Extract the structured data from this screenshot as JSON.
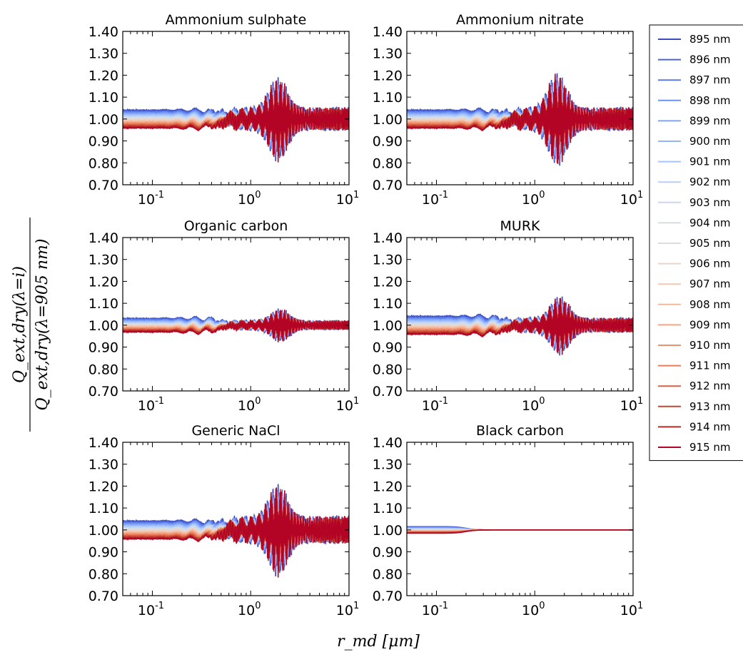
{
  "figure": {
    "ylabel_numerator": "Q_ext,dry(λ=i)",
    "ylabel_denominator": "Q_ext,dry(λ=905 nm)",
    "xlabel": "r_md [μm]"
  },
  "chart_data": {
    "type": "line",
    "layout": "3x2 grid of subplots sharing one legend at top-right",
    "xscale": "log",
    "xlim": [
      0.05,
      10
    ],
    "ylim": [
      0.7,
      1.4
    ],
    "x_tick_labels": [
      "10⁻¹",
      "10⁰",
      "10¹"
    ],
    "x_tick_values": [
      0.1,
      1,
      10
    ],
    "y_tick_labels": [
      "0.70",
      "0.80",
      "0.90",
      "1.00",
      "1.10",
      "1.20",
      "1.30",
      "1.40"
    ],
    "y_tick_values": [
      0.7,
      0.8,
      0.9,
      1.0,
      1.1,
      1.2,
      1.3,
      1.4
    ],
    "series_names": [
      "895 nm",
      "896 nm",
      "897 nm",
      "898 nm",
      "899 nm",
      "900 nm",
      "901 nm",
      "902 nm",
      "903 nm",
      "904 nm",
      "905 nm",
      "906 nm",
      "907 nm",
      "908 nm",
      "909 nm",
      "910 nm",
      "911 nm",
      "912 nm",
      "913 nm",
      "914 nm",
      "915 nm"
    ],
    "series_colors": [
      "#3b4cc0",
      "#4a63d3",
      "#5b7ae5",
      "#6d91f1",
      "#80a3fa",
      "#93b5fe",
      "#a5c3fe",
      "#b7cff9",
      "#c8d8f0",
      "#d6dce4",
      "#dddcdc",
      "#e9d5cb",
      "#f2c9b4",
      "#f6b99d",
      "#f5a585",
      "#f1906e",
      "#e77b58",
      "#da6143",
      "#c94430",
      "#b42a26",
      "#b40426"
    ],
    "legend_location": "top-right",
    "panels": [
      {
        "title": "Ammonium sulphate",
        "offset": 0.04,
        "peak_amp": 0.2,
        "peak_x": 1.9,
        "tail_amp": 0.055
      },
      {
        "title": "Ammonium nitrate",
        "offset": 0.04,
        "peak_amp": 0.22,
        "peak_x": 1.7,
        "tail_amp": 0.055
      },
      {
        "title": "Organic carbon",
        "offset": 0.03,
        "peak_amp": 0.08,
        "peak_x": 2.0,
        "tail_amp": 0.022
      },
      {
        "title": "MURK",
        "offset": 0.04,
        "peak_amp": 0.14,
        "peak_x": 1.8,
        "tail_amp": 0.035
      },
      {
        "title": "Generic NaCl",
        "offset": 0.04,
        "peak_amp": 0.22,
        "peak_x": 1.9,
        "tail_amp": 0.065
      },
      {
        "title": "Black carbon",
        "offset": 0.015,
        "peak_amp": 0.0,
        "peak_x": 1.0,
        "tail_amp": 0.0
      }
    ]
  }
}
